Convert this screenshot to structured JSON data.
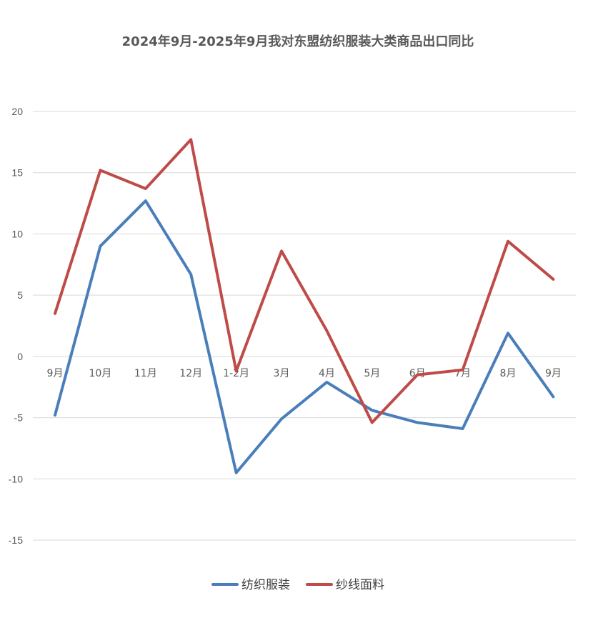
{
  "chart_data": {
    "type": "line",
    "title": "2024年9月-2025年9月我对东盟纺织服装大类商品出口同比",
    "categories": [
      "9月",
      "10月",
      "11月",
      "12月",
      "1-2月",
      "3月",
      "4月",
      "5月",
      "6月",
      "7月",
      "8月",
      "9月"
    ],
    "series": [
      {
        "name": "纺织服装",
        "color": "#4a7ebb",
        "values": [
          -4.8,
          9.0,
          12.7,
          6.7,
          -9.5,
          -5.1,
          -2.1,
          -4.4,
          -5.4,
          -5.9,
          1.9,
          -3.3
        ]
      },
      {
        "name": "纱线面料",
        "color": "#be4b48",
        "values": [
          3.5,
          15.2,
          13.7,
          17.7,
          -1.2,
          8.6,
          2.1,
          -5.4,
          -1.5,
          -1.1,
          9.4,
          6.3
        ]
      }
    ],
    "yticks": [
      20,
      15,
      10,
      5,
      0,
      -5,
      -10,
      -15
    ],
    "ylim": [
      -15,
      20
    ],
    "grid": true,
    "legend_position": "bottom"
  }
}
